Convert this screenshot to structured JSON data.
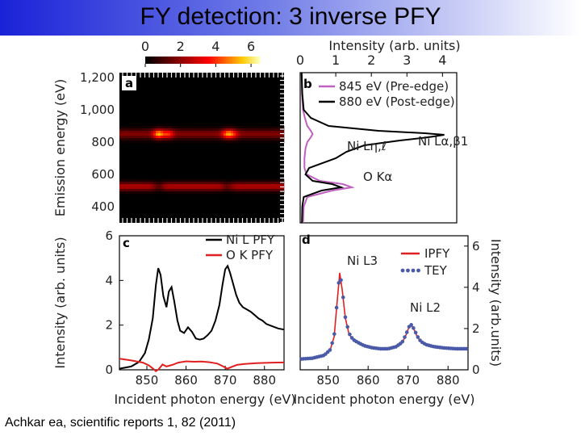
{
  "title": "FY detection: 3 inverse PFY",
  "citation": "Achkar ea, scientific reports 1, 82 (2011)",
  "colors": {
    "title_gradient_start": "#1a22d8",
    "pre_edge": "#c060c0",
    "post_edge": "#000000",
    "ni_l_pfy": "#000000",
    "o_k_pfy": "#e02020",
    "ipfy": "#e02020",
    "tey": "#4a5aa8"
  },
  "chart_data": [
    {
      "panel": "a",
      "type": "heatmap",
      "colorbar": {
        "ticks": [
          "0",
          "2",
          "4",
          "6"
        ],
        "colormap": "black-red-yellow",
        "range": [
          0,
          6.5
        ]
      },
      "ylabel": "Emission energy (eV)",
      "yticks": [
        "1,200",
        "1,000",
        "800",
        "600",
        "400"
      ],
      "ylim": [
        300,
        1230
      ],
      "xlim": [
        843,
        885
      ],
      "bands": [
        {
          "emission": 850,
          "width": 30,
          "base": 1.8,
          "peaks": [
            {
              "x": 853,
              "amp": 3.6
            },
            {
              "x": 855.5,
              "amp": 2.2
            },
            {
              "x": 870.5,
              "amp": 2.8
            },
            {
              "x": 872,
              "amp": 1.8
            }
          ]
        },
        {
          "emission": 525,
          "width": 26,
          "base": 2.5,
          "peaks": [
            {
              "x": 853,
              "amp": -1.2
            },
            {
              "x": 870.5,
              "amp": -1.0
            }
          ]
        }
      ]
    },
    {
      "panel": "b",
      "type": "line",
      "xlabel": "Intensity (arb. units)",
      "xticks": [
        "0",
        "1",
        "2",
        "3",
        "4"
      ],
      "xlim": [
        0,
        4.4
      ],
      "ylim": [
        300,
        1230
      ],
      "legend_position": "top-right",
      "annotations": [
        "Ni Lα,β1",
        "Ni Lη,ℓ",
        "O Kα"
      ],
      "series": [
        {
          "name": "845 eV (Pre-edge)",
          "emission": [
            300,
            400,
            460,
            500,
            520,
            540,
            560,
            600,
            640,
            700,
            760,
            800,
            830,
            850,
            870,
            900,
            960,
            1000,
            1100,
            1230
          ],
          "intensity": [
            0.08,
            0.1,
            0.2,
            0.9,
            1.45,
            1.2,
            0.55,
            0.18,
            0.12,
            0.12,
            0.15,
            0.2,
            0.3,
            0.35,
            0.3,
            0.2,
            0.12,
            0.08,
            0.05,
            0.04
          ]
        },
        {
          "name": "880 eV (Post-edge)",
          "emission": [
            300,
            400,
            460,
            500,
            520,
            540,
            560,
            600,
            640,
            700,
            740,
            780,
            810,
            830,
            845,
            855,
            870,
            900,
            950,
            1000,
            1100,
            1230
          ],
          "intensity": [
            0.05,
            0.06,
            0.1,
            0.6,
            1.15,
            0.9,
            0.35,
            0.15,
            0.25,
            1.0,
            1.3,
            1.8,
            2.8,
            3.6,
            4.05,
            3.5,
            2.2,
            0.8,
            0.3,
            0.1,
            0.06,
            0.04
          ]
        }
      ]
    },
    {
      "panel": "c",
      "type": "line",
      "xlabel": "Incident photon energy (eV)",
      "ylabel": "Intensity (arb. units)",
      "xticks": [
        "850",
        "860",
        "870",
        "880"
      ],
      "yticks": [
        "0",
        "2",
        "4",
        "6"
      ],
      "xlim": [
        843,
        885
      ],
      "ylim": [
        0,
        6
      ],
      "legend_position": "top-right",
      "series": [
        {
          "name": "Ni L PFY",
          "x": [
            843,
            846,
            848,
            849.5,
            850.5,
            851.5,
            852.3,
            852.9,
            853.5,
            854.2,
            855,
            855.6,
            856.3,
            857,
            857.8,
            858.5,
            859.5,
            860.5,
            861.5,
            862.5,
            863.5,
            864.5,
            865.5,
            866.5,
            867.5,
            868.5,
            869.3,
            870,
            870.6,
            871.2,
            872,
            872.8,
            873.6,
            874.5,
            875.5,
            876.5,
            877.5,
            878.5,
            879.5,
            880.5,
            882,
            883.5,
            885
          ],
          "y": [
            0.05,
            0.15,
            0.35,
            0.75,
            1.35,
            2.3,
            3.8,
            4.55,
            4.25,
            3.3,
            2.8,
            3.5,
            3.7,
            3.05,
            2.2,
            1.75,
            1.65,
            1.9,
            1.7,
            1.4,
            1.35,
            1.4,
            1.55,
            1.75,
            2.2,
            2.9,
            3.8,
            4.5,
            4.65,
            4.35,
            3.85,
            3.35,
            3.0,
            2.8,
            2.7,
            2.6,
            2.45,
            2.3,
            2.2,
            2.05,
            1.95,
            1.85,
            1.8
          ]
        },
        {
          "name": "O K PFY",
          "x": [
            843,
            846,
            849,
            850.5,
            851.5,
            852.3,
            853,
            854,
            855,
            856.5,
            858,
            860,
            862,
            864,
            866,
            868,
            869.5,
            870.5,
            871.5,
            873,
            875,
            878,
            882,
            885
          ],
          "y": [
            0.5,
            0.42,
            0.32,
            0.2,
            0.06,
            -0.06,
            0.02,
            0.24,
            0.15,
            0.22,
            0.32,
            0.38,
            0.36,
            0.37,
            0.34,
            0.28,
            0.15,
            0.05,
            0.12,
            0.22,
            0.26,
            0.3,
            0.32,
            0.33
          ]
        }
      ]
    },
    {
      "panel": "d",
      "type": "line",
      "xlabel": "Incident photon energy (eV)",
      "ylabel": "Intensity (arb.units)",
      "xticks": [
        "850",
        "860",
        "870",
        "880"
      ],
      "yticks": [
        "0",
        "2",
        "4",
        "6"
      ],
      "xlim": [
        843,
        885
      ],
      "ylim": [
        0,
        6.5
      ],
      "y_axis_side": "right",
      "legend_position": "top-right",
      "annotations": [
        "Ni L3",
        "Ni L2"
      ],
      "series": [
        {
          "name": "IPFY",
          "x": [
            843,
            846,
            849,
            850.5,
            851.5,
            852.2,
            852.9,
            853.5,
            854.3,
            855.2,
            856.2,
            857.5,
            859,
            861,
            863,
            865,
            867,
            868.5,
            869.5,
            870.2,
            870.8,
            871.5,
            872.3,
            873.2,
            874.5,
            876.5,
            879,
            882,
            885
          ],
          "y": [
            0.5,
            0.55,
            0.68,
            0.95,
            1.6,
            3.2,
            4.7,
            3.9,
            2.5,
            1.75,
            1.45,
            1.3,
            1.15,
            1.05,
            1.0,
            1.0,
            1.1,
            1.3,
            1.7,
            2.05,
            2.15,
            1.95,
            1.6,
            1.35,
            1.2,
            1.1,
            1.05,
            1.0,
            1.0
          ]
        },
        {
          "name": "TEY",
          "x": [
            843,
            846,
            849,
            850.5,
            851.5,
            852.2,
            852.9,
            853.5,
            854.3,
            855.2,
            856.2,
            857.5,
            859,
            861,
            863,
            865,
            867,
            868.5,
            869.5,
            870.2,
            870.8,
            871.5,
            872.3,
            873.2,
            874.5,
            876.5,
            879,
            882,
            885
          ],
          "y": [
            0.52,
            0.56,
            0.7,
            0.97,
            1.62,
            3.25,
            4.75,
            3.95,
            2.55,
            1.78,
            1.47,
            1.32,
            1.17,
            1.07,
            1.02,
            1.02,
            1.12,
            1.33,
            1.72,
            2.08,
            2.18,
            1.98,
            1.63,
            1.37,
            1.22,
            1.12,
            1.06,
            1.02,
            1.02
          ]
        }
      ]
    }
  ]
}
